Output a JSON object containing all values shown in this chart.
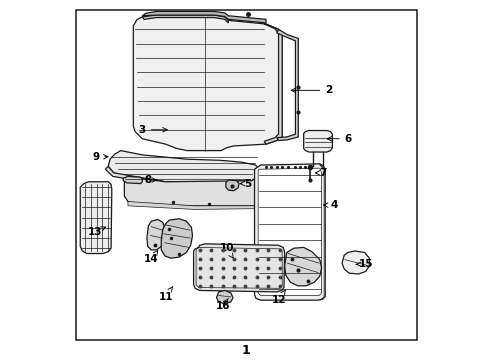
{
  "background_color": "#ffffff",
  "border_color": "#000000",
  "line_color": "#1a1a1a",
  "diagram_label": "1",
  "figsize": [
    4.89,
    3.6
  ],
  "dpi": 100,
  "callouts": {
    "2": {
      "tp": [
        0.735,
        0.75
      ],
      "ae": [
        0.62,
        0.75
      ]
    },
    "3": {
      "tp": [
        0.215,
        0.64
      ],
      "ae": [
        0.295,
        0.64
      ]
    },
    "4": {
      "tp": [
        0.75,
        0.43
      ],
      "ae": [
        0.71,
        0.43
      ]
    },
    "5": {
      "tp": [
        0.51,
        0.49
      ],
      "ae": [
        0.485,
        0.49
      ]
    },
    "6": {
      "tp": [
        0.79,
        0.615
      ],
      "ae": [
        0.72,
        0.615
      ]
    },
    "7": {
      "tp": [
        0.72,
        0.52
      ],
      "ae": [
        0.695,
        0.52
      ]
    },
    "8": {
      "tp": [
        0.23,
        0.5
      ],
      "ae": [
        0.265,
        0.5
      ]
    },
    "9": {
      "tp": [
        0.085,
        0.565
      ],
      "ae": [
        0.13,
        0.565
      ]
    },
    "10": {
      "tp": [
        0.45,
        0.31
      ],
      "ae": [
        0.47,
        0.28
      ]
    },
    "11": {
      "tp": [
        0.28,
        0.175
      ],
      "ae": [
        0.305,
        0.21
      ]
    },
    "12": {
      "tp": [
        0.595,
        0.165
      ],
      "ae": [
        0.615,
        0.195
      ]
    },
    "13": {
      "tp": [
        0.082,
        0.355
      ],
      "ae": [
        0.115,
        0.37
      ]
    },
    "14": {
      "tp": [
        0.24,
        0.28
      ],
      "ae": [
        0.26,
        0.305
      ]
    },
    "15": {
      "tp": [
        0.84,
        0.265
      ],
      "ae": [
        0.81,
        0.265
      ]
    },
    "16": {
      "tp": [
        0.44,
        0.148
      ],
      "ae": [
        0.455,
        0.17
      ]
    }
  }
}
